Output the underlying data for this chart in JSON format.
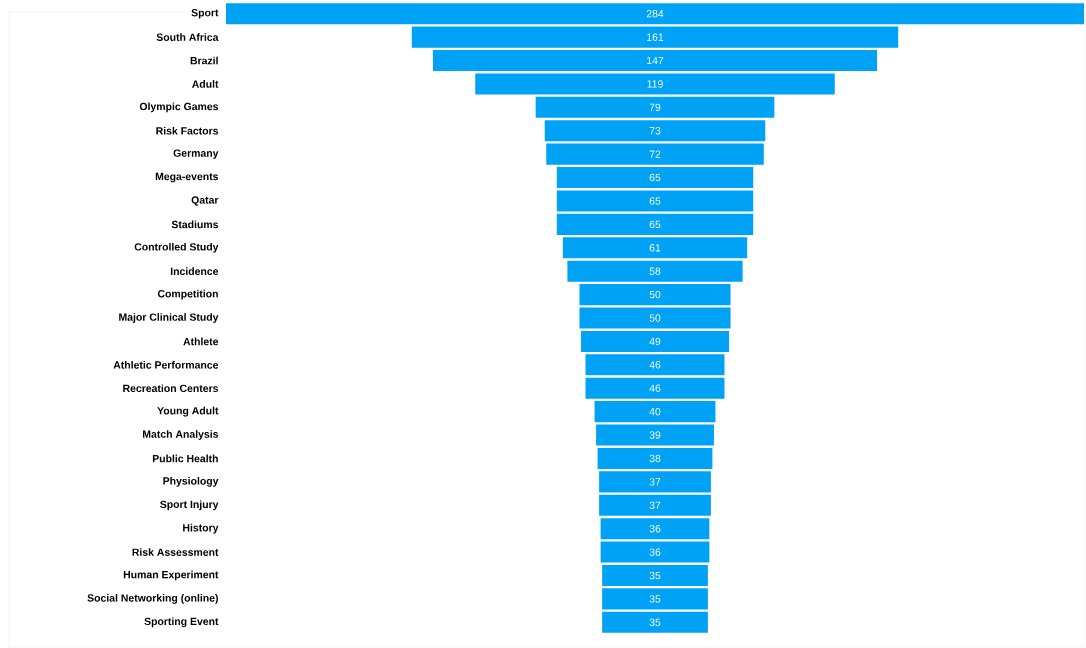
{
  "chart_data": {
    "type": "other",
    "categories": [
      "Sport",
      "South Africa",
      "Brazil",
      "Adult",
      "Olympic Games",
      "Risk Factors",
      "Germany",
      "Mega-events",
      "Qatar",
      "Stadiums",
      "Controlled Study",
      "Incidence",
      "Competition",
      "Major Clinical Study",
      "Athlete",
      "Athletic Performance",
      "Recreation Centers",
      "Young Adult",
      "Match Analysis",
      "Public Health",
      "Physiology",
      "Sport Injury",
      "History",
      "Risk Assessment",
      "Human Experiment",
      "Social Networking (online)",
      "Sporting Event"
    ],
    "values": [
      284,
      161,
      147,
      119,
      79,
      73,
      72,
      65,
      65,
      65,
      61,
      58,
      50,
      50,
      49,
      46,
      46,
      40,
      39,
      38,
      37,
      37,
      36,
      36,
      35,
      35,
      35
    ],
    "color": "#00a2f5",
    "data_labels": true
  }
}
